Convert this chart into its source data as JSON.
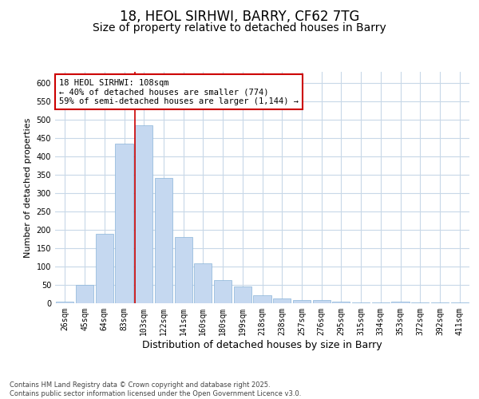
{
  "title_line1": "18, HEOL SIRHWI, BARRY, CF62 7TG",
  "title_line2": "Size of property relative to detached houses in Barry",
  "xlabel": "Distribution of detached houses by size in Barry",
  "ylabel": "Number of detached properties",
  "categories": [
    "26sqm",
    "45sqm",
    "64sqm",
    "83sqm",
    "103sqm",
    "122sqm",
    "141sqm",
    "160sqm",
    "180sqm",
    "199sqm",
    "218sqm",
    "238sqm",
    "257sqm",
    "276sqm",
    "295sqm",
    "315sqm",
    "334sqm",
    "353sqm",
    "372sqm",
    "392sqm",
    "411sqm"
  ],
  "values": [
    5,
    50,
    190,
    435,
    485,
    340,
    180,
    108,
    62,
    45,
    22,
    12,
    8,
    8,
    5,
    3,
    3,
    5,
    3,
    2,
    3
  ],
  "bar_color": "#c5d8f0",
  "bar_edge_color": "#8ab4d8",
  "vline_x": 4.0,
  "vline_color": "#cc0000",
  "annotation_text": "18 HEOL SIRHWI: 108sqm\n← 40% of detached houses are smaller (774)\n59% of semi-detached houses are larger (1,144) →",
  "annotation_box_color": "#ffffff",
  "annotation_box_edge": "#cc0000",
  "ylim": [
    0,
    630
  ],
  "yticks": [
    0,
    50,
    100,
    150,
    200,
    250,
    300,
    350,
    400,
    450,
    500,
    550,
    600
  ],
  "plot_bg_color": "#ffffff",
  "grid_color": "#c8d8e8",
  "footer_text": "Contains HM Land Registry data © Crown copyright and database right 2025.\nContains public sector information licensed under the Open Government Licence v3.0.",
  "title_fontsize": 12,
  "subtitle_fontsize": 10,
  "tick_fontsize": 7,
  "xlabel_fontsize": 9,
  "ylabel_fontsize": 8,
  "annotation_fontsize": 7.5
}
